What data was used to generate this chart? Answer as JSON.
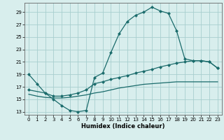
{
  "bg_color": "#d8eeed",
  "grid_color": "#a8cece",
  "line_color": "#1a6b6b",
  "xlabel": "Humidex (Indice chaleur)",
  "xlim": [
    -0.5,
    23.5
  ],
  "ylim": [
    12.5,
    30.5
  ],
  "yticks": [
    13,
    15,
    17,
    19,
    21,
    23,
    25,
    27,
    29
  ],
  "xticks": [
    0,
    1,
    2,
    3,
    4,
    5,
    6,
    7,
    8,
    9,
    10,
    11,
    12,
    13,
    14,
    15,
    16,
    17,
    18,
    19,
    20,
    21,
    22,
    23
  ],
  "curve1_x": [
    0,
    1,
    2,
    3,
    4,
    5,
    6,
    7,
    8,
    9,
    10,
    11,
    12,
    13,
    14,
    15,
    16,
    17,
    18,
    19,
    20,
    21,
    22,
    23
  ],
  "curve1_y": [
    19.0,
    17.5,
    16.0,
    15.0,
    14.0,
    13.2,
    13.0,
    13.2,
    18.5,
    19.2,
    22.5,
    25.5,
    27.5,
    28.5,
    29.0,
    29.8,
    29.2,
    28.8,
    26.0,
    21.5,
    21.2,
    21.2,
    21.0,
    20.0
  ],
  "curve2_x": [
    0,
    2,
    3,
    4,
    5,
    6,
    7,
    8,
    9,
    10,
    11,
    12,
    13,
    14,
    15,
    16,
    17,
    18,
    19,
    20,
    21,
    22,
    23
  ],
  "curve2_y": [
    16.5,
    16.0,
    15.5,
    15.5,
    15.7,
    16.0,
    16.5,
    17.5,
    17.8,
    18.2,
    18.5,
    18.8,
    19.2,
    19.5,
    19.8,
    20.2,
    20.5,
    20.8,
    21.0,
    21.2,
    21.2,
    21.0,
    20.0
  ],
  "curve3_x": [
    0,
    1,
    2,
    3,
    4,
    5,
    6,
    7,
    8,
    9,
    10,
    11,
    12,
    13,
    14,
    15,
    16,
    17,
    18,
    19,
    20,
    21,
    22,
    23
  ],
  "curve3_y": [
    15.8,
    15.5,
    15.3,
    15.2,
    15.2,
    15.3,
    15.5,
    15.7,
    16.0,
    16.2,
    16.5,
    16.8,
    17.0,
    17.2,
    17.4,
    17.5,
    17.6,
    17.7,
    17.8,
    17.8,
    17.8,
    17.8,
    17.8,
    17.8
  ]
}
